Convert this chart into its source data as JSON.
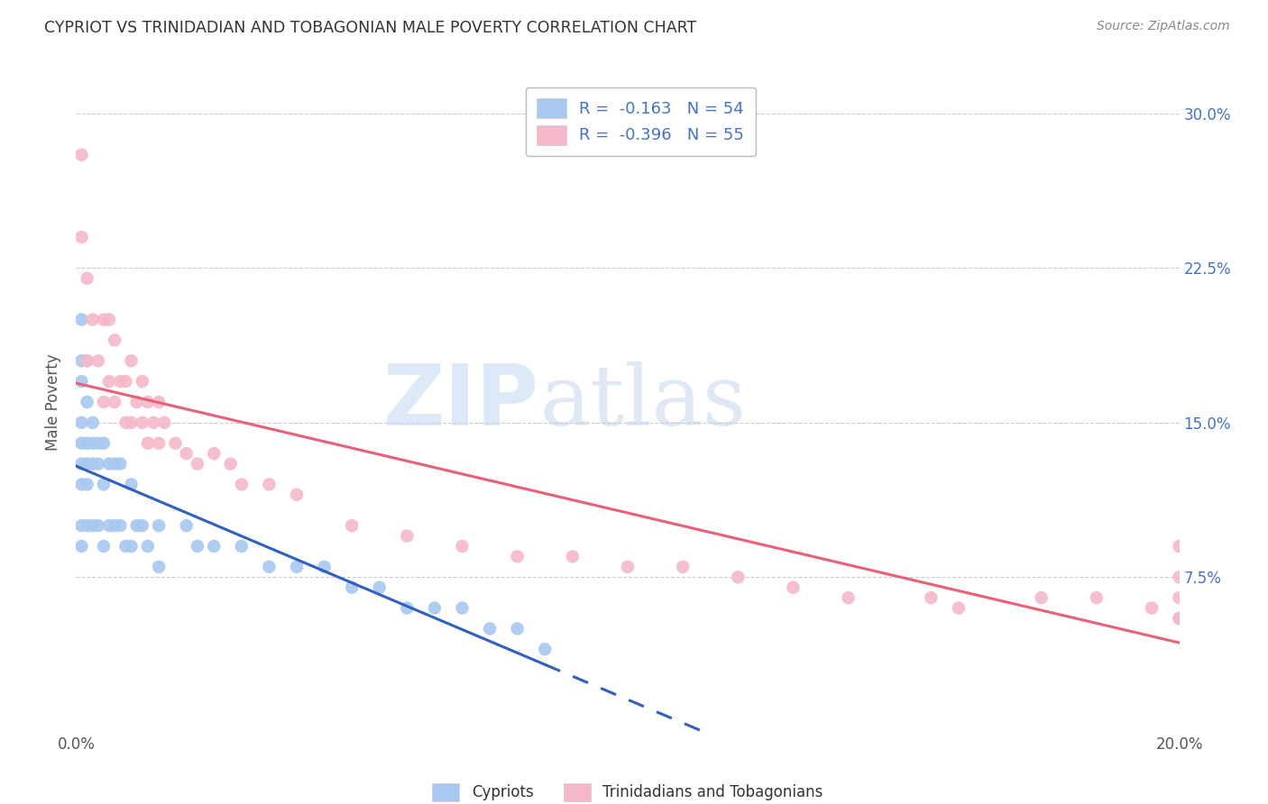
{
  "title": "CYPRIOT VS TRINIDADIAN AND TOBAGONIAN MALE POVERTY CORRELATION CHART",
  "source": "Source: ZipAtlas.com",
  "ylabel": "Male Poverty",
  "yticks": [
    "7.5%",
    "15.0%",
    "22.5%",
    "30.0%"
  ],
  "ytick_vals": [
    0.075,
    0.15,
    0.225,
    0.3
  ],
  "xmin": 0.0,
  "xmax": 0.2,
  "ymin": 0.0,
  "ymax": 0.32,
  "cypriot_color": "#a8c8f0",
  "trinidadian_color": "#f5b8c8",
  "cypriot_line_color": "#3060c0",
  "trinidadian_line_color": "#e8607a",
  "legend_label1": "Cypriots",
  "legend_label2": "Trinidadians and Tobagonians",
  "cypriot_x": [
    0.001,
    0.001,
    0.001,
    0.001,
    0.001,
    0.001,
    0.001,
    0.001,
    0.001,
    0.002,
    0.002,
    0.002,
    0.002,
    0.002,
    0.002,
    0.003,
    0.003,
    0.003,
    0.003,
    0.004,
    0.004,
    0.004,
    0.005,
    0.005,
    0.005,
    0.006,
    0.006,
    0.007,
    0.007,
    0.008,
    0.008,
    0.009,
    0.01,
    0.01,
    0.011,
    0.012,
    0.013,
    0.015,
    0.015,
    0.02,
    0.022,
    0.025,
    0.03,
    0.035,
    0.04,
    0.045,
    0.05,
    0.055,
    0.06,
    0.065,
    0.07,
    0.075,
    0.08,
    0.085
  ],
  "cypriot_y": [
    0.2,
    0.18,
    0.17,
    0.15,
    0.14,
    0.13,
    0.12,
    0.1,
    0.09,
    0.18,
    0.16,
    0.14,
    0.13,
    0.12,
    0.1,
    0.15,
    0.14,
    0.13,
    0.1,
    0.14,
    0.13,
    0.1,
    0.14,
    0.12,
    0.09,
    0.13,
    0.1,
    0.13,
    0.1,
    0.13,
    0.1,
    0.09,
    0.12,
    0.09,
    0.1,
    0.1,
    0.09,
    0.1,
    0.08,
    0.1,
    0.09,
    0.09,
    0.09,
    0.08,
    0.08,
    0.08,
    0.07,
    0.07,
    0.06,
    0.06,
    0.06,
    0.05,
    0.05,
    0.04
  ],
  "trinidadian_x": [
    0.001,
    0.001,
    0.002,
    0.002,
    0.003,
    0.004,
    0.005,
    0.005,
    0.006,
    0.006,
    0.007,
    0.007,
    0.008,
    0.009,
    0.009,
    0.01,
    0.01,
    0.011,
    0.012,
    0.012,
    0.013,
    0.013,
    0.014,
    0.015,
    0.015,
    0.016,
    0.018,
    0.02,
    0.022,
    0.025,
    0.028,
    0.03,
    0.035,
    0.04,
    0.05,
    0.06,
    0.07,
    0.08,
    0.09,
    0.1,
    0.11,
    0.12,
    0.13,
    0.14,
    0.155,
    0.16,
    0.175,
    0.185,
    0.195,
    0.2,
    0.2,
    0.2,
    0.2,
    0.2
  ],
  "trinidadian_y": [
    0.28,
    0.24,
    0.22,
    0.18,
    0.2,
    0.18,
    0.2,
    0.16,
    0.2,
    0.17,
    0.19,
    0.16,
    0.17,
    0.17,
    0.15,
    0.18,
    0.15,
    0.16,
    0.17,
    0.15,
    0.16,
    0.14,
    0.15,
    0.16,
    0.14,
    0.15,
    0.14,
    0.135,
    0.13,
    0.135,
    0.13,
    0.12,
    0.12,
    0.115,
    0.1,
    0.095,
    0.09,
    0.085,
    0.085,
    0.08,
    0.08,
    0.075,
    0.07,
    0.065,
    0.065,
    0.06,
    0.065,
    0.065,
    0.06,
    0.09,
    0.075,
    0.065,
    0.055,
    0.055
  ]
}
